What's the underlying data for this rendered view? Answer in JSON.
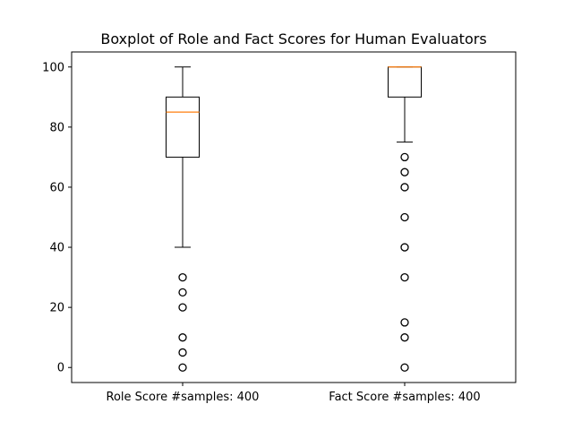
{
  "chart_data": {
    "type": "box",
    "title": "Boxplot of Role and Fact Scores for Human Evaluators",
    "xlabel": "",
    "ylabel": "",
    "ylim": [
      -5,
      105
    ],
    "yticks": [
      0,
      20,
      40,
      60,
      80,
      100
    ],
    "grid": false,
    "categories": [
      "Role Score #samples: 400",
      "Fact Score #samples: 400"
    ],
    "boxes": [
      {
        "label": "Role Score #samples: 400",
        "whisker_low": 40,
        "q1": 70,
        "median": 85,
        "q3": 90,
        "whisker_high": 100,
        "outliers": [
          30,
          25,
          20,
          10,
          5,
          0
        ]
      },
      {
        "label": "Fact Score #samples: 400",
        "whisker_low": 75,
        "q1": 90,
        "median": 100,
        "q3": 100,
        "whisker_high": 100,
        "outliers": [
          70,
          65,
          60,
          50,
          40,
          30,
          15,
          10,
          0
        ]
      }
    ],
    "colors": {
      "box": "#000000",
      "median": "#ff7f0e",
      "outlier": "#000000"
    }
  }
}
